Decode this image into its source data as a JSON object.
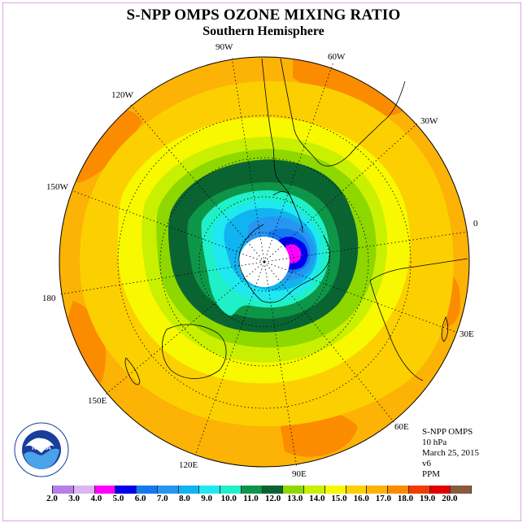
{
  "header": {
    "title": "S-NPP OMPS OZONE MIXING RATIO",
    "subtitle": "Southern Hemisphere"
  },
  "map": {
    "projection": "polar-stereographic-south",
    "longitude_labels": [
      "90W",
      "60W",
      "30W",
      "0",
      "30E",
      "60E",
      "90E",
      "120E",
      "150E",
      "180",
      "150W",
      "120W"
    ],
    "colors": {
      "background_field": "#fcb305",
      "polar_night": "#ffffff",
      "coast": "#000000"
    }
  },
  "info": {
    "instrument": "S-NPP OMPS",
    "pressure": "10 hPa",
    "date": "March 25, 2015",
    "version": "v6",
    "units": "PPM"
  },
  "legend": {
    "bins": [
      {
        "min": 2.0,
        "color": "#b87ee8"
      },
      {
        "min": 3.0,
        "color": "#dcb6f0"
      },
      {
        "min": 4.0,
        "color": "#ff00ff"
      },
      {
        "min": 5.0,
        "color": "#0000ee"
      },
      {
        "min": 6.0,
        "color": "#1478f0"
      },
      {
        "min": 7.0,
        "color": "#2896f0"
      },
      {
        "min": 8.0,
        "color": "#10b4f0"
      },
      {
        "min": 9.0,
        "color": "#20e8f0"
      },
      {
        "min": 10.0,
        "color": "#20f0c8"
      },
      {
        "min": 11.0,
        "color": "#0e9648"
      },
      {
        "min": 12.0,
        "color": "#0a6432"
      },
      {
        "min": 13.0,
        "color": "#8ed800"
      },
      {
        "min": 14.0,
        "color": "#c8f000"
      },
      {
        "min": 15.0,
        "color": "#f8f800"
      },
      {
        "min": 16.0,
        "color": "#fcd000"
      },
      {
        "min": 17.0,
        "color": "#fcb305"
      },
      {
        "min": 18.0,
        "color": "#fb8c00"
      },
      {
        "min": 19.0,
        "color": "#f03c00"
      },
      {
        "min": 20.0,
        "color": "#e00000"
      },
      {
        "min": 21.0,
        "color": "#8a5a3c"
      }
    ],
    "tick_labels": [
      "2.0",
      "3.0",
      "4.0",
      "5.0",
      "6.0",
      "7.0",
      "8.0",
      "9.0",
      "10.0",
      "11.0",
      "12.0",
      "13.0",
      "14.0",
      "15.0",
      "16.0",
      "17.0",
      "18.0",
      "19.0",
      "20.0"
    ]
  },
  "logo": {
    "text": "NOAA",
    "ring_text": "NATIONAL OCEANIC AND ATMOSPHERIC ADMINISTRATION · U.S. DEPARTMENT OF COMMERCE"
  }
}
